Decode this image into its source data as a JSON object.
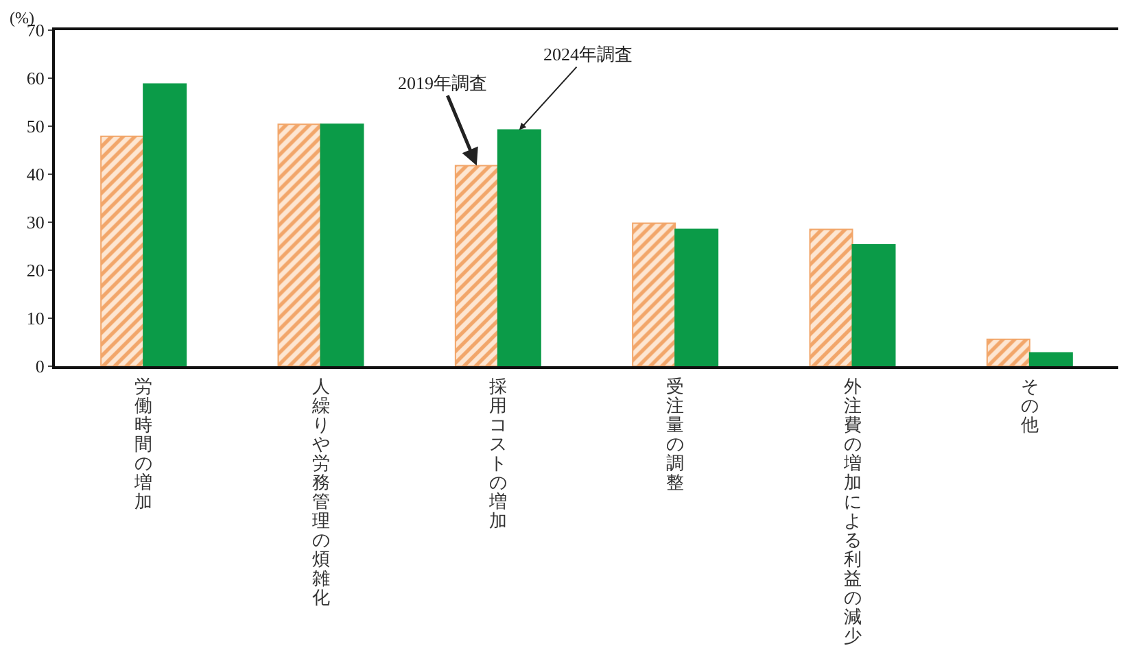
{
  "chart_data": {
    "type": "bar",
    "ylabel": "(%)",
    "categories": [
      "労働時間の増加",
      "人繰りや労務管理の煩雑化",
      "採用コストの増加",
      "受注量の調整",
      "外注費の増加による利益の減少",
      "その他"
    ],
    "series": [
      {
        "name": "2019年調査",
        "color": "#f2a66a",
        "values": [
          47.9,
          50.4,
          41.8,
          29.8,
          28.5,
          5.6
        ]
      },
      {
        "name": "2024年調査",
        "color": "#0b9b48",
        "values": [
          58.8,
          50.4,
          49.2,
          28.5,
          25.3,
          2.8
        ]
      }
    ],
    "ylim": [
      0,
      70
    ],
    "yticks": [
      0,
      10,
      20,
      30,
      40,
      50,
      60,
      70
    ],
    "grid": false,
    "legend": false
  }
}
